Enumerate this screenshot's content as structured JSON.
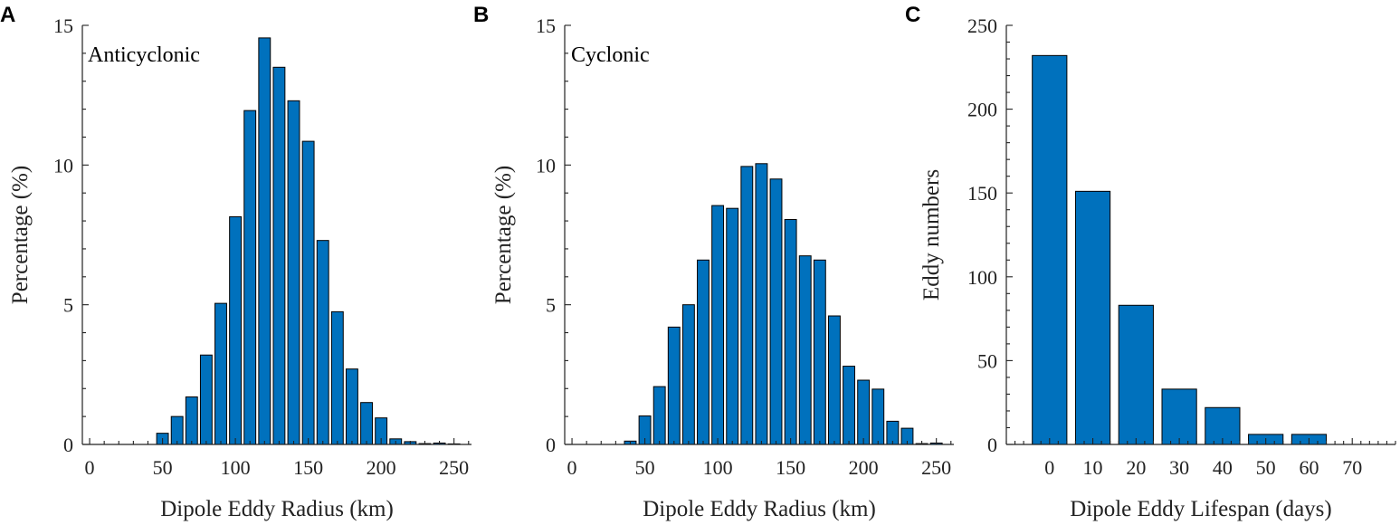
{
  "colors": {
    "bar": "#0071BD",
    "axis": "#222222"
  },
  "chart_data": [
    {
      "panel": "A",
      "type": "bar",
      "annotation": "Anticyclonic",
      "xlabel": "Dipole Eddy Radius (km)",
      "ylabel": "Percentage (%)",
      "xlim": [
        -5,
        262
      ],
      "ylim": [
        0,
        15
      ],
      "xticks": [
        0,
        50,
        100,
        150,
        200,
        250
      ],
      "yticks": [
        0,
        5,
        10,
        15
      ],
      "x_minor_step": 10,
      "y_minor_step": 1,
      "bar_width": 8,
      "x": [
        50,
        60,
        70,
        80,
        90,
        100,
        110,
        120,
        130,
        140,
        150,
        160,
        170,
        180,
        190,
        200,
        210,
        220,
        230,
        240,
        250
      ],
      "values": [
        0.4,
        1.0,
        1.7,
        3.2,
        5.05,
        8.15,
        11.95,
        14.55,
        13.5,
        12.3,
        10.85,
        7.3,
        4.75,
        2.7,
        1.5,
        0.95,
        0.2,
        0.1,
        0.03,
        0.05,
        0.02
      ]
    },
    {
      "panel": "B",
      "type": "bar",
      "annotation": "Cyclonic",
      "xlabel": "Dipole Eddy Radius (km)",
      "ylabel": "Percentage (%)",
      "xlim": [
        -5,
        262
      ],
      "ylim": [
        0,
        15
      ],
      "xticks": [
        0,
        50,
        100,
        150,
        200,
        250
      ],
      "yticks": [
        0,
        5,
        10,
        15
      ],
      "x_minor_step": 10,
      "y_minor_step": 1,
      "bar_width": 8,
      "x": [
        40,
        50,
        60,
        70,
        80,
        90,
        100,
        110,
        120,
        130,
        140,
        150,
        160,
        170,
        180,
        190,
        200,
        210,
        220,
        230,
        240,
        250
      ],
      "values": [
        0.12,
        1.02,
        2.07,
        4.2,
        5.0,
        6.6,
        8.55,
        8.45,
        9.95,
        10.05,
        9.5,
        8.05,
        6.75,
        6.6,
        4.6,
        2.8,
        2.3,
        1.98,
        0.83,
        0.58,
        0.03,
        0.05
      ]
    },
    {
      "panel": "C",
      "type": "bar",
      "annotation": "",
      "xlabel": "Dipole Eddy Lifespan (days)",
      "ylabel": "Eddy numbers",
      "xlim": [
        -10,
        80
      ],
      "ylim": [
        0,
        250
      ],
      "xticks": [
        0,
        10,
        20,
        30,
        40,
        50,
        60,
        70
      ],
      "yticks": [
        0,
        50,
        100,
        150,
        200,
        250
      ],
      "x_minor_step": 2,
      "y_minor_step": 10,
      "bar_width": 8,
      "x": [
        0,
        10,
        20,
        30,
        40,
        50,
        60
      ],
      "values": [
        232,
        151,
        83,
        33,
        22,
        6,
        6
      ]
    }
  ]
}
